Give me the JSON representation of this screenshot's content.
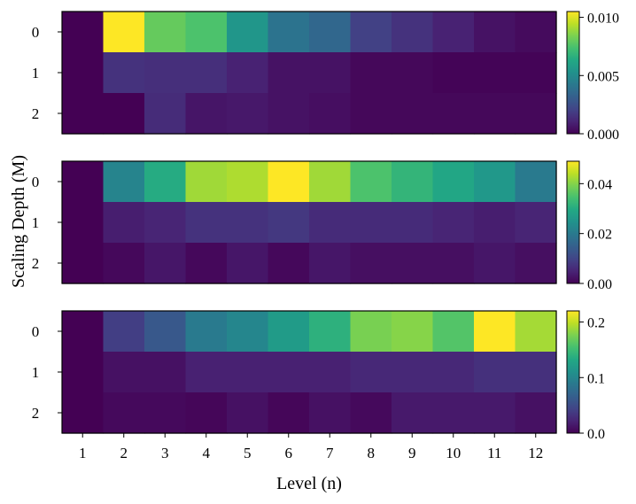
{
  "chart_data": {
    "type": "heatmap",
    "xlabel": "Level (n)",
    "ylabel": "Scaling Depth (M)",
    "x": [
      1,
      2,
      3,
      4,
      5,
      6,
      7,
      8,
      9,
      10,
      11,
      12
    ],
    "y": [
      0,
      1,
      2
    ],
    "colormap": "viridis",
    "panels": [
      {
        "vmin": 0,
        "vmax": 0.0105,
        "colorbar_ticks": [
          "0.000",
          "0.005",
          "0.010"
        ],
        "colorbar_tick_values": [
          0,
          0.005,
          0.01
        ],
        "values": [
          [
            0.0,
            0.0105,
            0.008,
            0.0075,
            0.0055,
            0.004,
            0.0035,
            0.002,
            0.0015,
            0.001,
            0.0005,
            0.0003
          ],
          [
            0.0,
            0.0015,
            0.0014,
            0.0014,
            0.001,
            0.0005,
            0.0005,
            0.0002,
            0.0002,
            0.0001,
            0.0001,
            0.0001
          ],
          [
            0.0,
            0.0,
            0.0013,
            0.0006,
            0.0007,
            0.0005,
            0.0004,
            0.0002,
            0.0002,
            0.0002,
            0.0002,
            0.0002
          ]
        ]
      },
      {
        "vmin": 0,
        "vmax": 0.049,
        "colorbar_ticks": [
          "0.00",
          "0.02",
          "0.04"
        ],
        "colorbar_tick_values": [
          0,
          0.02,
          0.04
        ],
        "values": [
          [
            0.0,
            0.022,
            0.03,
            0.042,
            0.043,
            0.049,
            0.042,
            0.035,
            0.032,
            0.029,
            0.026,
            0.02
          ],
          [
            0.0,
            0.004,
            0.005,
            0.007,
            0.007,
            0.008,
            0.006,
            0.006,
            0.006,
            0.005,
            0.004,
            0.005
          ],
          [
            0.0,
            0.001,
            0.003,
            0.001,
            0.003,
            0.001,
            0.003,
            0.002,
            0.002,
            0.002,
            0.003,
            0.002
          ]
        ]
      },
      {
        "vmin": 0,
        "vmax": 0.22,
        "colorbar_ticks": [
          "0.0",
          "0.1",
          "0.2"
        ],
        "colorbar_tick_values": [
          0,
          0.1,
          0.2
        ],
        "values": [
          [
            0.0,
            0.04,
            0.06,
            0.09,
            0.1,
            0.12,
            0.14,
            0.175,
            0.18,
            0.16,
            0.22,
            0.19
          ],
          [
            0.0,
            0.01,
            0.01,
            0.02,
            0.02,
            0.02,
            0.02,
            0.025,
            0.025,
            0.025,
            0.03,
            0.03
          ],
          [
            0.0,
            0.005,
            0.005,
            0.003,
            0.01,
            0.003,
            0.01,
            0.005,
            0.015,
            0.015,
            0.015,
            0.01
          ]
        ]
      }
    ]
  }
}
